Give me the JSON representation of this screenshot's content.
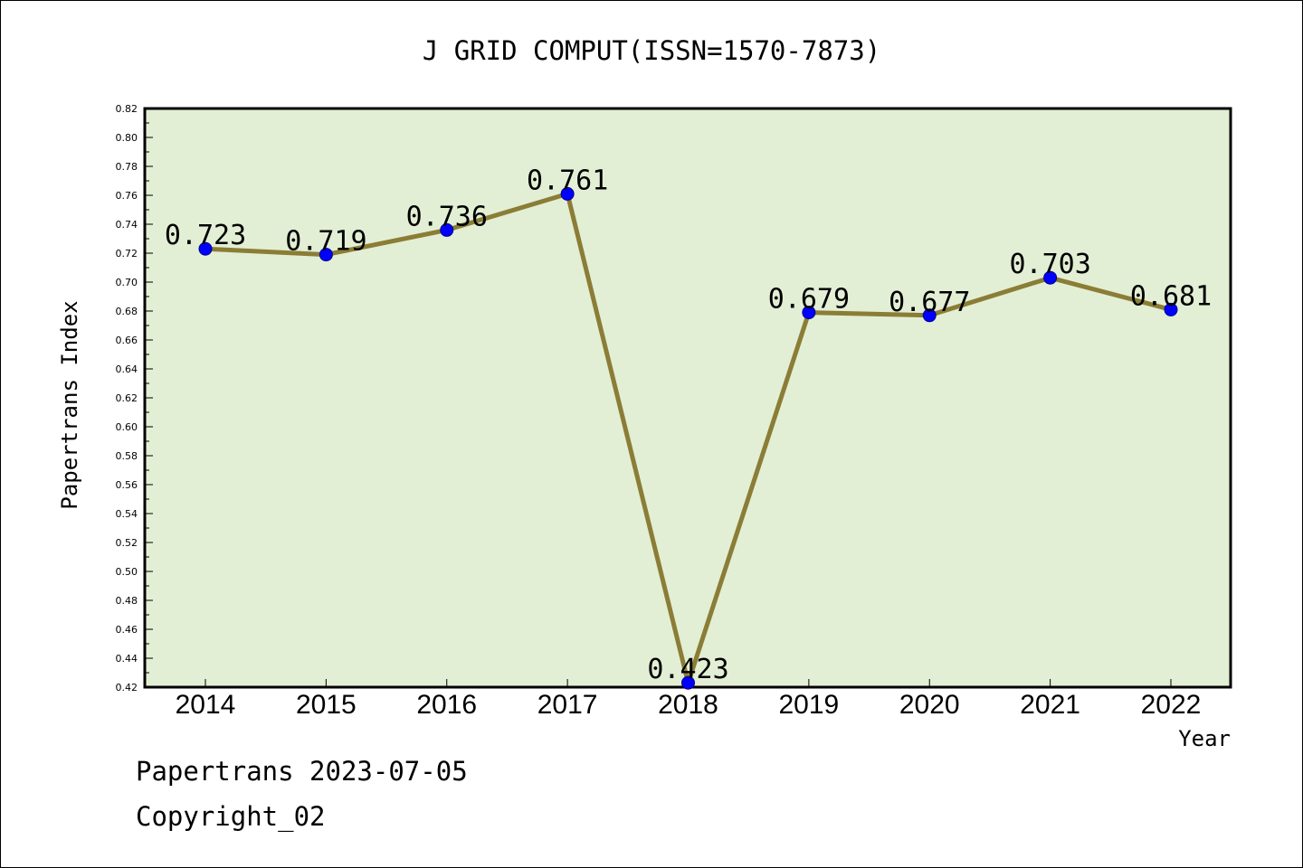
{
  "chart_data": {
    "type": "line",
    "title": "J GRID COMPUT(ISSN=1570-7873)",
    "xlabel": "Year",
    "ylabel": "Papertrans Index",
    "categories": [
      "2014",
      "2015",
      "2016",
      "2017",
      "2018",
      "2019",
      "2020",
      "2021",
      "2022"
    ],
    "series": [
      {
        "values": [
          0.723,
          0.719,
          0.736,
          0.761,
          0.423,
          0.679,
          0.677,
          0.703,
          0.681
        ],
        "data_labels": [
          "0.723",
          "0.719",
          "0.736",
          "0.761",
          "0.423",
          "0.679",
          "0.677",
          "0.703",
          "0.681"
        ]
      }
    ],
    "ylim": [
      0.42,
      0.82
    ],
    "yticks": [
      "0.42",
      "0.44",
      "0.46",
      "0.48",
      "0.50",
      "0.52",
      "0.54",
      "0.56",
      "0.58",
      "0.60",
      "0.62",
      "0.64",
      "0.66",
      "0.68",
      "0.70",
      "0.72",
      "0.74",
      "0.76",
      "0.78",
      "0.80",
      "0.82"
    ],
    "grid": false,
    "legend": "none",
    "colors": {
      "plot_background": "#e2efd5",
      "line": "#8b7d35",
      "marker": "#0000ff",
      "marker_edge": "#00008b"
    }
  },
  "footer": {
    "line1": "Papertrans 2023-07-05",
    "line2": "Copyright_02"
  }
}
